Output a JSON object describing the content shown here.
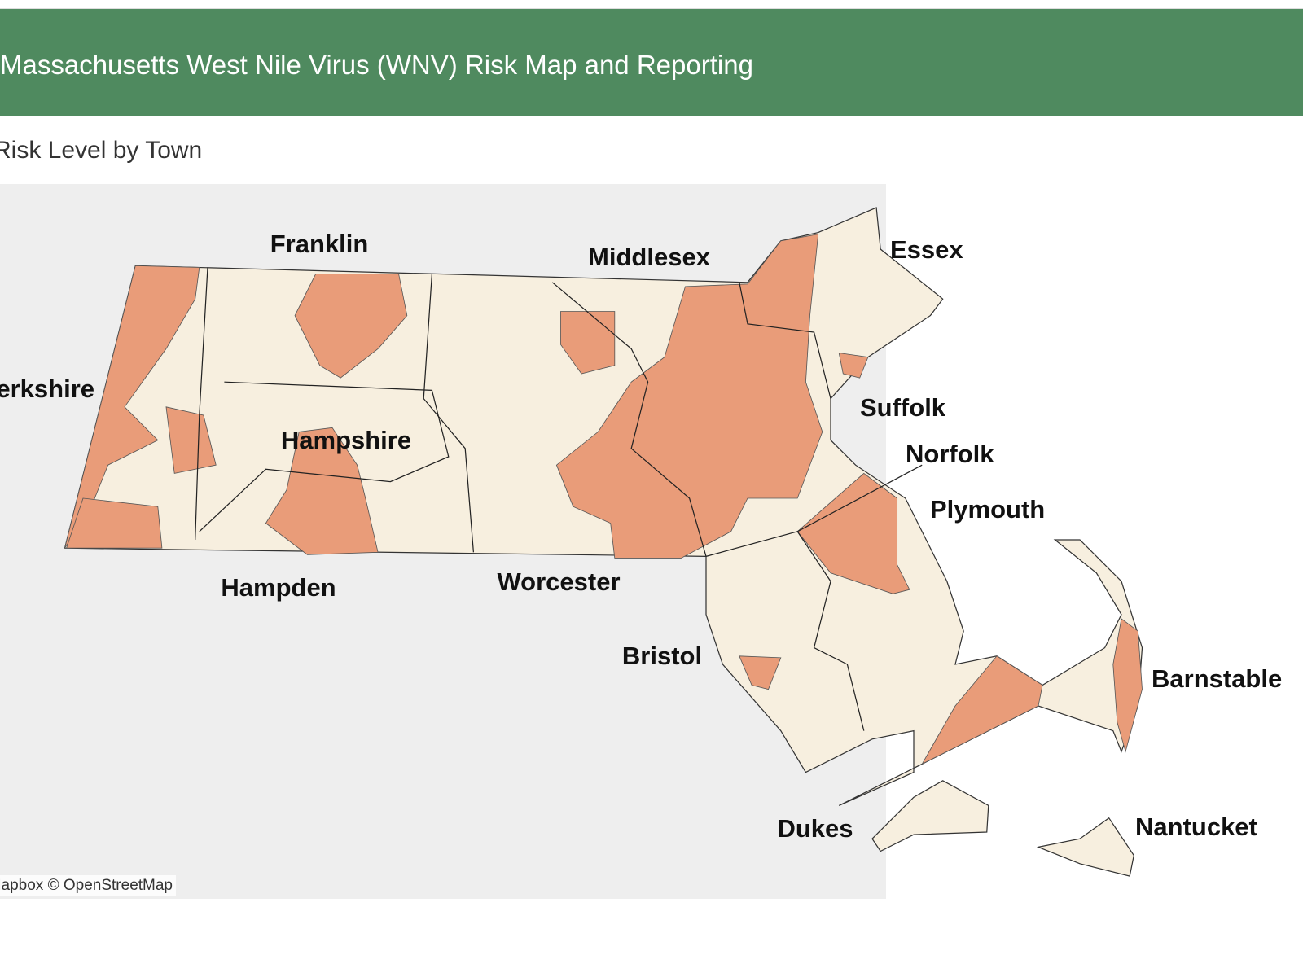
{
  "header": {
    "title": "Massachusetts West Nile Virus (WNV) Risk Map and Reporting"
  },
  "map": {
    "subtitle": "Risk Level by Town",
    "labels": [
      "Franklin",
      "Middlesex",
      "Essex",
      "Berkshire",
      "Suffolk",
      "Hampshire",
      "Norfolk",
      "Plymouth",
      "Hampden",
      "Worcester",
      "Bristol",
      "Barnstable",
      "Dukes",
      "Nantucket"
    ],
    "attribution": "© Mapbox © OpenStreetMap"
  }
}
